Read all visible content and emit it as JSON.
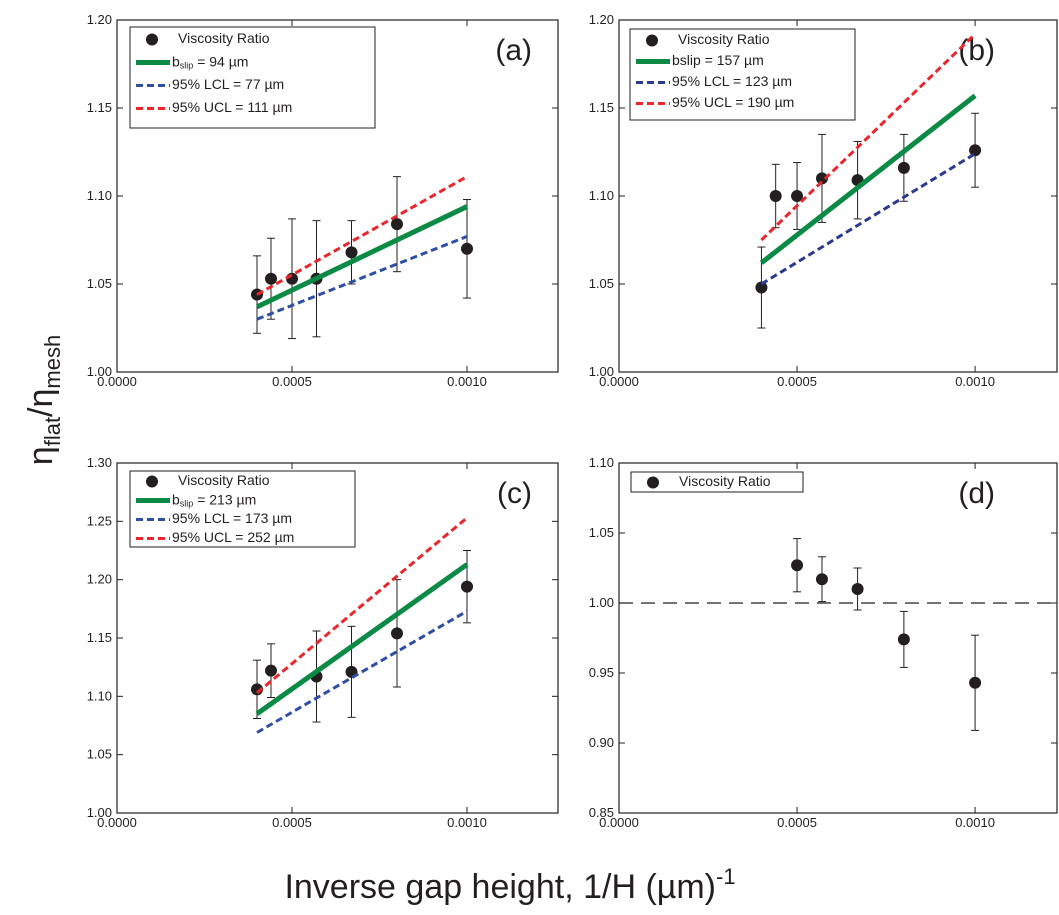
{
  "chart_data": [
    {
      "type": "scatter",
      "label": "(a)",
      "xlim": [
        0,
        0.00126
      ],
      "ylim": [
        1.0,
        1.2
      ],
      "xticks": [
        {
          "value": 0,
          "label": "0.0000"
        },
        {
          "value": 0.0005,
          "label": "0.0005"
        },
        {
          "value": 0.001,
          "label": "0.0010"
        }
      ],
      "yticks": [
        {
          "value": 1.0,
          "label": "1.00"
        },
        {
          "value": 1.05,
          "label": "1.05"
        },
        {
          "value": 1.1,
          "label": "1.10"
        },
        {
          "value": 1.15,
          "label": "1.15"
        },
        {
          "value": 1.2,
          "label": "1.20"
        }
      ],
      "series": [
        {
          "name": "Viscosity Ratio",
          "color": "#231f20",
          "style": "marker",
          "x": [
            0.0004,
            0.00044,
            0.0005,
            0.00057,
            0.00067,
            0.0008,
            0.001
          ],
          "values": [
            1.044,
            1.053,
            1.053,
            1.053,
            1.068,
            1.084,
            1.07
          ],
          "errors": [
            0.022,
            0.023,
            0.034,
            0.033,
            0.018,
            0.027,
            0.028
          ]
        },
        {
          "name": [
            "b",
            "slip",
            " = 94 µm"
          ],
          "color": "#0a8a44",
          "style": "solid",
          "x": [
            0.0004,
            0.001
          ],
          "values": [
            1.037,
            1.094
          ]
        },
        {
          "name": "95% LCL = 77 µm",
          "color": "#2e4fa3",
          "style": "dashed",
          "x": [
            0.0004,
            0.001
          ],
          "values": [
            1.03,
            1.077
          ]
        },
        {
          "name": "95% UCL = 111 µm",
          "color": "#e8262b",
          "style": "dashed",
          "x": [
            0.0004,
            0.001
          ],
          "values": [
            1.044,
            1.111
          ]
        }
      ]
    },
    {
      "type": "scatter",
      "label": "(b)",
      "xlim": [
        0,
        0.00123
      ],
      "ylim": [
        1.0,
        1.2
      ],
      "xticks": [
        {
          "value": 0,
          "label": "0.0000"
        },
        {
          "value": 0.0005,
          "label": "0.0005"
        },
        {
          "value": 0.001,
          "label": "0.0010"
        }
      ],
      "yticks": [
        {
          "value": 1.0,
          "label": "1.00"
        },
        {
          "value": 1.05,
          "label": "1.05"
        },
        {
          "value": 1.1,
          "label": "1.10"
        },
        {
          "value": 1.15,
          "label": "1.15"
        },
        {
          "value": 1.2,
          "label": "1.20"
        }
      ],
      "series": [
        {
          "name": "Viscosity Ratio",
          "color": "#231f20",
          "style": "marker",
          "x": [
            0.0004,
            0.00044,
            0.0005,
            0.00057,
            0.00067,
            0.0008,
            0.001
          ],
          "values": [
            1.048,
            1.1,
            1.1,
            1.11,
            1.109,
            1.116,
            1.126
          ],
          "errors": [
            0.023,
            0.018,
            0.019,
            0.025,
            0.022,
            0.019,
            0.021
          ]
        },
        {
          "name": "bslip = 157 µm",
          "color": "#0a8a44",
          "style": "solid",
          "x": [
            0.0004,
            0.001
          ],
          "values": [
            1.062,
            1.157
          ]
        },
        {
          "name": "95% LCL = 123 µm",
          "color": "#2b3990",
          "style": "dashed",
          "x": [
            0.0004,
            0.001
          ],
          "values": [
            1.05,
            1.124
          ]
        },
        {
          "name": "95% UCL = 190 µm",
          "color": "#e8262b",
          "style": "dashed",
          "x": [
            0.0004,
            0.001
          ],
          "values": [
            1.075,
            1.192
          ]
        }
      ]
    },
    {
      "type": "scatter",
      "label": "(c)",
      "xlim": [
        0,
        0.00126
      ],
      "ylim": [
        1.0,
        1.3
      ],
      "xticks": [
        {
          "value": 0,
          "label": "0.0000"
        },
        {
          "value": 0.0005,
          "label": "0.0005"
        },
        {
          "value": 0.001,
          "label": "0.0010"
        }
      ],
      "yticks": [
        {
          "value": 1.0,
          "label": "1.00"
        },
        {
          "value": 1.05,
          "label": "1.05"
        },
        {
          "value": 1.1,
          "label": "1.10"
        },
        {
          "value": 1.15,
          "label": "1.15"
        },
        {
          "value": 1.2,
          "label": "1.20"
        },
        {
          "value": 1.25,
          "label": "1.25"
        },
        {
          "value": 1.3,
          "label": "1.30"
        }
      ],
      "series": [
        {
          "name": "Viscosity Ratio",
          "color": "#231f20",
          "style": "marker",
          "x": [
            0.0004,
            0.00044,
            0.00057,
            0.00067,
            0.0008,
            0.001
          ],
          "values": [
            1.106,
            1.122,
            1.117,
            1.121,
            1.154,
            1.194
          ],
          "errors": [
            0.025,
            0.023,
            0.039,
            0.039,
            0.046,
            0.031
          ]
        },
        {
          "name": [
            "b",
            "slip",
            " = 213 µm"
          ],
          "color": "#0a8a44",
          "style": "solid",
          "x": [
            0.0004,
            0.001
          ],
          "values": [
            1.085,
            1.213
          ]
        },
        {
          "name": "95% LCL = 173 µm",
          "color": "#2e4fa3",
          "style": "dashed",
          "x": [
            0.0004,
            0.001
          ],
          "values": [
            1.069,
            1.173
          ]
        },
        {
          "name": "95% UCL = 252 µm",
          "color": "#e8262b",
          "style": "dashed",
          "x": [
            0.0004,
            0.001
          ],
          "values": [
            1.103,
            1.253
          ]
        }
      ]
    },
    {
      "type": "scatter",
      "label": "(d)",
      "xlim": [
        0,
        0.00123
      ],
      "ylim": [
        0.85,
        1.1
      ],
      "hline": 1.0,
      "xticks": [
        {
          "value": 0,
          "label": "0.0000"
        },
        {
          "value": 0.0005,
          "label": "0.0005"
        },
        {
          "value": 0.001,
          "label": "0.0010"
        }
      ],
      "yticks": [
        {
          "value": 0.85,
          "label": "0.85"
        },
        {
          "value": 0.9,
          "label": "0.90"
        },
        {
          "value": 0.95,
          "label": "0.95"
        },
        {
          "value": 1.0,
          "label": "1.00"
        },
        {
          "value": 1.05,
          "label": "1.05"
        },
        {
          "value": 1.1,
          "label": "1.10"
        }
      ],
      "series": [
        {
          "name": "Viscosity Ratio",
          "color": "#231f20",
          "style": "marker",
          "x": [
            0.0005,
            0.00057,
            0.00067,
            0.0008,
            0.001
          ],
          "values": [
            1.027,
            1.017,
            1.01,
            0.974,
            0.943
          ],
          "errors": [
            0.019,
            0.016,
            0.015,
            0.02,
            0.034
          ]
        }
      ]
    }
  ],
  "ylabel": [
    "η",
    "flat",
    "/η",
    "mesh"
  ],
  "xlabel": [
    "Inverse gap height, 1/H (µm)",
    "-1"
  ]
}
